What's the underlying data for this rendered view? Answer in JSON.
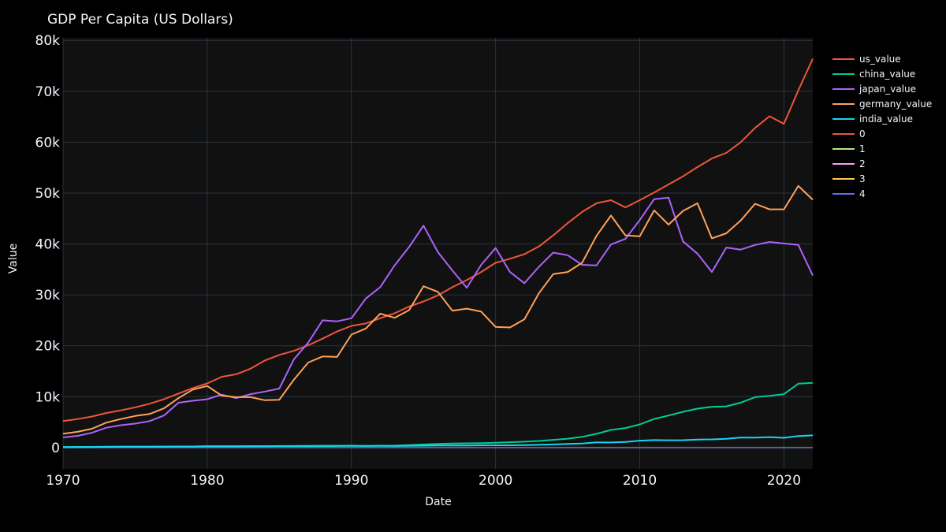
{
  "page": {
    "background": "#000000",
    "plot_background": "#111111",
    "grid_color": "#283442",
    "zeroline_color": "#506784"
  },
  "chart_data": {
    "type": "line",
    "title": "GDP Per Capita (US Dollars)",
    "xlabel": "Date",
    "ylabel": "Value",
    "xlim": [
      1970,
      2022
    ],
    "ylim": [
      -4200,
      80500
    ],
    "xticks": [
      1970,
      1980,
      1990,
      2000,
      2010,
      2020
    ],
    "xtick_labels": [
      "1970",
      "1980",
      "1990",
      "2000",
      "2010",
      "2020"
    ],
    "yticks": [
      0,
      10000,
      20000,
      30000,
      40000,
      50000,
      60000,
      70000,
      80000
    ],
    "ytick_labels": [
      "0",
      "10k",
      "20k",
      "30k",
      "40k",
      "50k",
      "60k",
      "70k",
      "80k"
    ],
    "grid": true,
    "legend_position": "right",
    "x": [
      1970,
      1971,
      1972,
      1973,
      1974,
      1975,
      1976,
      1977,
      1978,
      1979,
      1980,
      1981,
      1982,
      1983,
      1984,
      1985,
      1986,
      1987,
      1988,
      1989,
      1990,
      1991,
      1992,
      1993,
      1994,
      1995,
      1996,
      1997,
      1998,
      1999,
      2000,
      2001,
      2002,
      2003,
      2004,
      2005,
      2006,
      2007,
      2008,
      2009,
      2010,
      2011,
      2012,
      2013,
      2014,
      2015,
      2016,
      2017,
      2018,
      2019,
      2020,
      2021,
      2022
    ],
    "series": [
      {
        "name": "us_value",
        "color": "#EF553B",
        "values": [
          5200,
          5600,
          6100,
          6800,
          7300,
          7900,
          8600,
          9500,
          10600,
          11700,
          12600,
          13900,
          14400,
          15500,
          17100,
          18200,
          19000,
          20100,
          21400,
          22800,
          23900,
          24400,
          25400,
          26400,
          27700,
          28700,
          29900,
          31500,
          32900,
          34500,
          36300,
          37100,
          38000,
          39500,
          41700,
          44100,
          46300,
          48000,
          48600,
          47200,
          48600,
          50100,
          51700,
          53300,
          55100,
          56800,
          57900,
          60000,
          62800,
          65100,
          63600,
          70200,
          76400
        ]
      },
      {
        "name": "china_value",
        "color": "#00CC96",
        "values": [
          110,
          120,
          130,
          160,
          160,
          180,
          160,
          180,
          160,
          180,
          200,
          200,
          200,
          220,
          250,
          290,
          280,
          250,
          280,
          310,
          320,
          330,
          370,
          380,
          470,
          610,
          710,
          780,
          830,
          870,
          960,
          1050,
          1150,
          1290,
          1510,
          1750,
          2100,
          2700,
          3470,
          3830,
          4550,
          5620,
          6300,
          7020,
          7640,
          8020,
          8090,
          8820,
          9910,
          10170,
          10500,
          12560,
          12720
        ]
      },
      {
        "name": "japan_value",
        "color": "#AB63FA",
        "values": [
          2000,
          2300,
          2900,
          3900,
          4400,
          4700,
          5200,
          6300,
          8800,
          9200,
          9500,
          10400,
          9700,
          10500,
          11000,
          11600,
          17300,
          20600,
          25000,
          24800,
          25400,
          29300,
          31500,
          35800,
          39400,
          43600,
          38400,
          34800,
          31400,
          35900,
          39200,
          34500,
          32300,
          35500,
          38300,
          37800,
          35900,
          35800,
          39900,
          41000,
          44700,
          48800,
          49100,
          40500,
          38100,
          34500,
          39300,
          38900,
          39800,
          40400,
          40100,
          39800,
          33800
        ]
      },
      {
        "name": "germany_value",
        "color": "#FFA15A",
        "values": [
          2700,
          3100,
          3700,
          4900,
          5600,
          6200,
          6600,
          7700,
          9700,
          11400,
          12100,
          10200,
          9900,
          9900,
          9300,
          9400,
          13300,
          16700,
          17900,
          17800,
          22200,
          23400,
          26300,
          25500,
          27000,
          31700,
          30600,
          26900,
          27300,
          26700,
          23700,
          23600,
          25200,
          30300,
          34100,
          34500,
          36300,
          41600,
          45600,
          41700,
          41500,
          46600,
          43800,
          46500,
          48000,
          41100,
          42100,
          44600,
          47900,
          46800,
          46800,
          51400,
          48700
        ]
      },
      {
        "name": "india_value",
        "color": "#19D3F3",
        "values": [
          110,
          120,
          120,
          140,
          160,
          160,
          160,
          190,
          210,
          220,
          270,
          270,
          280,
          290,
          280,
          300,
          310,
          340,
          350,
          350,
          370,
          300,
          320,
          300,
          350,
          370,
          400,
          410,
          410,
          440,
          440,
          450,
          470,
          540,
          620,
          710,
          800,
          1020,
          1000,
          1090,
          1360,
          1460,
          1440,
          1450,
          1570,
          1610,
          1730,
          1980,
          1970,
          2050,
          1910,
          2250,
          2390
        ]
      }
    ],
    "legend_entries": [
      {
        "name": "us_value",
        "color": "#EF553B"
      },
      {
        "name": "china_value",
        "color": "#00CC96"
      },
      {
        "name": "japan_value",
        "color": "#AB63FA"
      },
      {
        "name": "germany_value",
        "color": "#FFA15A"
      },
      {
        "name": "india_value",
        "color": "#19D3F3"
      },
      {
        "name": "0",
        "color": "#EF553B"
      },
      {
        "name": "1",
        "color": "#B6E880"
      },
      {
        "name": "2",
        "color": "#FF97FF"
      },
      {
        "name": "3",
        "color": "#FECB52"
      },
      {
        "name": "4",
        "color": "#636EFA"
      }
    ]
  }
}
